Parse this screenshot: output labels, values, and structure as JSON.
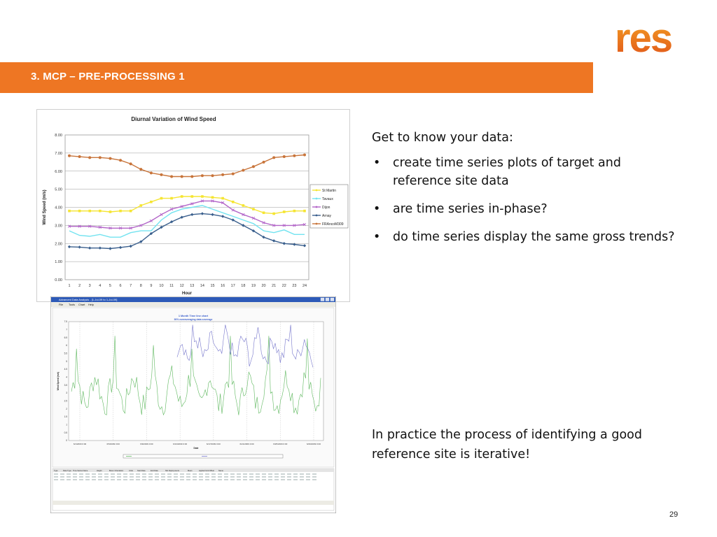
{
  "brand": {
    "logo_text": "res",
    "logo_color": "#e8601c"
  },
  "header": {
    "title": "3.   MCP – PRE-PROCESSING 1",
    "bar_color": "#ee7623"
  },
  "content": {
    "intro": "Get to know your data:",
    "bullets": [
      "create time series plots of target and reference site data",
      "are time series in-phase?",
      "do time series display the same gross trends?"
    ],
    "bullet_glyph": "•",
    "note": "In practice the process of identifying a good reference site is iterative!"
  },
  "page_number": "29",
  "screenshot": {
    "window_title": "Advanced Data Analysis - [1-Jul-09 to 1-Jul-09]",
    "menu": [
      "File",
      "Tools",
      "Chart",
      "Help"
    ],
    "chart_title_line1": "1 Month Time line chart",
    "chart_title_line2": "90% overaveraging data coverage",
    "ylabel": "Wind Speed (m/s)",
    "xlabel": "Date",
    "y_ticks": [
      "7.5",
      "7",
      "6.5",
      "6",
      "5.5",
      "5",
      "4.5",
      "4",
      "3.5",
      "3",
      "2.5",
      "2",
      "1.5",
      "1",
      "0.5",
      "0"
    ],
    "x_ticks": [
      "6/1/2009 0:00",
      "6/5/2009 0:00",
      "6/9/2009 0:00",
      "6/13/2009 0:00",
      "6/17/2009 0:00",
      "6/21/2009 0:00",
      "6/25/2009 0:00",
      "6/29/2009 0:00"
    ],
    "table_headers": [
      "Type",
      "Data Type",
      "Time Series Name",
      "Height",
      "Boom Orientation",
      "Units",
      "Start Date",
      "End Date",
      "Nbr Deployments",
      "Mean",
      "Applied Grid Offset",
      "Name"
    ],
    "series_colors": {
      "green": "#5fb85f",
      "purple": "#7777cc"
    }
  },
  "chart_data": {
    "type": "line",
    "title": "Diurnal Variation of Wind Speed",
    "xlabel": "Hour",
    "ylabel": "Wind Speed (m/s)",
    "ylim": [
      0,
      8
    ],
    "y_ticks": [
      "0.00",
      "1.00",
      "2.00",
      "3.00",
      "4.00",
      "5.00",
      "6.00",
      "7.00",
      "8.00"
    ],
    "grid": true,
    "legend_position": "right",
    "categories": [
      "1",
      "2",
      "3",
      "4",
      "5",
      "6",
      "7",
      "8",
      "9",
      "10",
      "11",
      "12",
      "13",
      "14",
      "15",
      "16",
      "17",
      "18",
      "19",
      "20",
      "21",
      "22",
      "23",
      "24"
    ],
    "series": [
      {
        "name": "St Martin",
        "color": "#f5e532",
        "marker": "square",
        "values": [
          3.8,
          3.8,
          3.8,
          3.8,
          3.75,
          3.8,
          3.8,
          4.1,
          4.3,
          4.5,
          4.5,
          4.6,
          4.6,
          4.6,
          4.55,
          4.5,
          4.3,
          4.1,
          3.9,
          3.7,
          3.65,
          3.75,
          3.8,
          3.8
        ]
      },
      {
        "name": "Tavaux",
        "color": "#73e3f0",
        "marker": "none",
        "values": [
          2.7,
          2.45,
          2.4,
          2.5,
          2.35,
          2.35,
          2.6,
          2.7,
          2.7,
          3.3,
          3.7,
          3.9,
          4.0,
          4.1,
          3.9,
          3.7,
          3.5,
          3.3,
          3.1,
          2.7,
          2.6,
          2.75,
          2.5,
          2.5
        ]
      },
      {
        "name": "Dijon",
        "color": "#b264c8",
        "marker": "x",
        "values": [
          2.95,
          2.95,
          2.95,
          2.9,
          2.85,
          2.85,
          2.85,
          3.0,
          3.25,
          3.6,
          3.9,
          4.05,
          4.2,
          4.35,
          4.35,
          4.25,
          3.85,
          3.6,
          3.4,
          3.15,
          3.0,
          3.0,
          3.0,
          3.05
        ]
      },
      {
        "name": "Arnay",
        "color": "#3a5f8d",
        "marker": "diamond",
        "values": [
          1.82,
          1.8,
          1.75,
          1.75,
          1.72,
          1.78,
          1.85,
          2.1,
          2.55,
          2.9,
          3.2,
          3.45,
          3.6,
          3.65,
          3.6,
          3.5,
          3.3,
          3.0,
          2.7,
          2.35,
          2.15,
          2.0,
          1.95,
          1.88
        ]
      },
      {
        "name": "FRAncoM309",
        "color": "#c8743a",
        "marker": "circle",
        "values": [
          6.85,
          6.8,
          6.75,
          6.75,
          6.7,
          6.6,
          6.4,
          6.1,
          5.9,
          5.8,
          5.7,
          5.7,
          5.7,
          5.75,
          5.75,
          5.8,
          5.85,
          6.05,
          6.25,
          6.5,
          6.75,
          6.8,
          6.85,
          6.9
        ]
      }
    ]
  }
}
